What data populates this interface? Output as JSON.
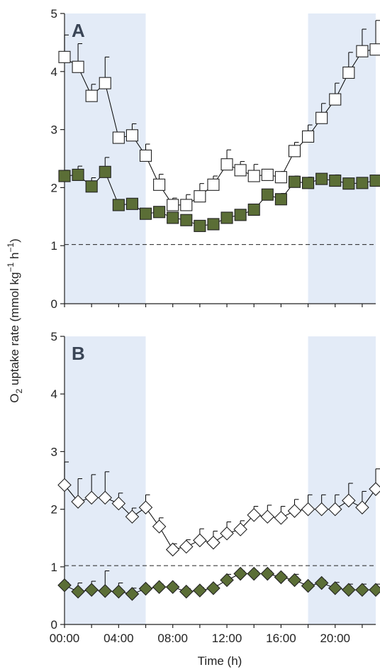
{
  "figure": {
    "ylabel_prefix": "O",
    "ylabel_sub": "2",
    "ylabel_main": " uptake rate (mmol kg",
    "ylabel_sup1": "−1",
    "ylabel_mid": " h",
    "ylabel_sup2": "−1",
    "ylabel_close": ")",
    "xlabel": "Time (h)",
    "x_tick_labels": [
      "00:00",
      "04:00",
      "08:00",
      "12:00",
      "16:00",
      "20:00"
    ]
  },
  "colors": {
    "night_shade": "#e3ebf7",
    "filled_marker": "#5b6e36",
    "open_marker": "#ffffff",
    "line": "#000000"
  },
  "chart_data": [
    {
      "panel_label": "A",
      "type": "line",
      "x_unit": "hours",
      "xlim": [
        0,
        23
      ],
      "ylim": [
        0,
        5
      ],
      "y_ticks": [
        "0",
        "1",
        "2",
        "3",
        "4",
        "5"
      ],
      "reference_line": 1.02,
      "night_periods": [
        [
          0,
          6
        ],
        [
          18,
          23
        ]
      ],
      "series": [
        {
          "marker": "open-square",
          "x": [
            0,
            1,
            2,
            3,
            4,
            5,
            6,
            7,
            8,
            9,
            10,
            11,
            12,
            13,
            14,
            15,
            16,
            17,
            18,
            19,
            20,
            21,
            22,
            23
          ],
          "y": [
            4.25,
            4.08,
            3.58,
            3.8,
            2.86,
            2.9,
            2.55,
            2.05,
            1.7,
            1.7,
            1.85,
            2.05,
            2.4,
            2.3,
            2.2,
            2.22,
            2.18,
            2.63,
            2.88,
            3.2,
            3.52,
            3.98,
            4.35,
            4.38
          ],
          "error": [
            0.38,
            0.4,
            0.2,
            0.45,
            0.08,
            0.2,
            0.2,
            0.18,
            0.12,
            0.18,
            0.22,
            0.15,
            0.25,
            0.15,
            0.2,
            0.06,
            0.1,
            0.15,
            0.2,
            0.25,
            0.28,
            0.35,
            0.38,
            0.5
          ]
        },
        {
          "marker": "filled-square",
          "x": [
            0,
            1,
            2,
            3,
            4,
            5,
            6,
            7,
            8,
            9,
            10,
            11,
            12,
            13,
            14,
            15,
            16,
            17,
            18,
            19,
            20,
            21,
            22,
            23
          ],
          "y": [
            2.2,
            2.22,
            2.02,
            2.27,
            1.7,
            1.72,
            1.55,
            1.58,
            1.48,
            1.44,
            1.34,
            1.37,
            1.48,
            1.53,
            1.62,
            1.88,
            1.8,
            2.1,
            2.08,
            2.15,
            2.12,
            2.07,
            2.08,
            2.12
          ],
          "error": [
            0.1,
            0.15,
            0.15,
            0.25,
            0.08,
            0.05,
            0.05,
            0.05,
            0.05,
            0.08,
            0.05,
            0.05,
            0.05,
            0.08,
            0.05,
            0.05,
            0.1,
            0.1,
            0.1,
            0.08,
            0.1,
            0.05,
            0.05,
            0.08
          ]
        }
      ]
    },
    {
      "panel_label": "B",
      "type": "line",
      "x_unit": "hours",
      "xlim": [
        0,
        23
      ],
      "ylim": [
        0,
        5
      ],
      "y_ticks": [
        "0",
        "1",
        "2",
        "3",
        "4",
        "5"
      ],
      "reference_line": 1.02,
      "night_periods": [
        [
          0,
          6
        ],
        [
          18,
          23
        ]
      ],
      "series": [
        {
          "marker": "open-diamond",
          "x": [
            0,
            1,
            2,
            3,
            4,
            5,
            6,
            7,
            8,
            9,
            10,
            11,
            12,
            13,
            14,
            15,
            16,
            17,
            18,
            19,
            20,
            21,
            22,
            23
          ],
          "y": [
            2.42,
            2.13,
            2.2,
            2.2,
            2.1,
            1.87,
            2.03,
            1.7,
            1.3,
            1.35,
            1.46,
            1.42,
            1.58,
            1.65,
            1.9,
            1.87,
            1.85,
            1.97,
            2.0,
            2.0,
            2.0,
            2.15,
            2.03,
            2.35
          ],
          "error": [
            0.4,
            0.4,
            0.4,
            0.45,
            0.18,
            0.15,
            0.22,
            0.15,
            0.1,
            0.12,
            0.2,
            0.2,
            0.2,
            0.15,
            0.15,
            0.2,
            0.2,
            0.2,
            0.25,
            0.25,
            0.25,
            0.3,
            0.28,
            0.35
          ]
        },
        {
          "marker": "filled-diamond",
          "x": [
            0,
            1,
            2,
            3,
            4,
            5,
            6,
            7,
            8,
            9,
            10,
            11,
            12,
            13,
            14,
            15,
            16,
            17,
            18,
            19,
            20,
            21,
            22,
            23
          ],
          "y": [
            0.68,
            0.57,
            0.6,
            0.58,
            0.57,
            0.53,
            0.62,
            0.65,
            0.65,
            0.57,
            0.59,
            0.63,
            0.77,
            0.88,
            0.88,
            0.88,
            0.82,
            0.77,
            0.67,
            0.72,
            0.63,
            0.6,
            0.6,
            0.6
          ],
          "error": [
            0.05,
            0.15,
            0.15,
            0.35,
            0.15,
            0.1,
            0.05,
            0.05,
            0.05,
            0.05,
            0.05,
            0.05,
            0.1,
            0.05,
            0.05,
            0.05,
            0.05,
            0.1,
            0.05,
            0.05,
            0.1,
            0.1,
            0.1,
            0.1
          ]
        }
      ]
    }
  ]
}
